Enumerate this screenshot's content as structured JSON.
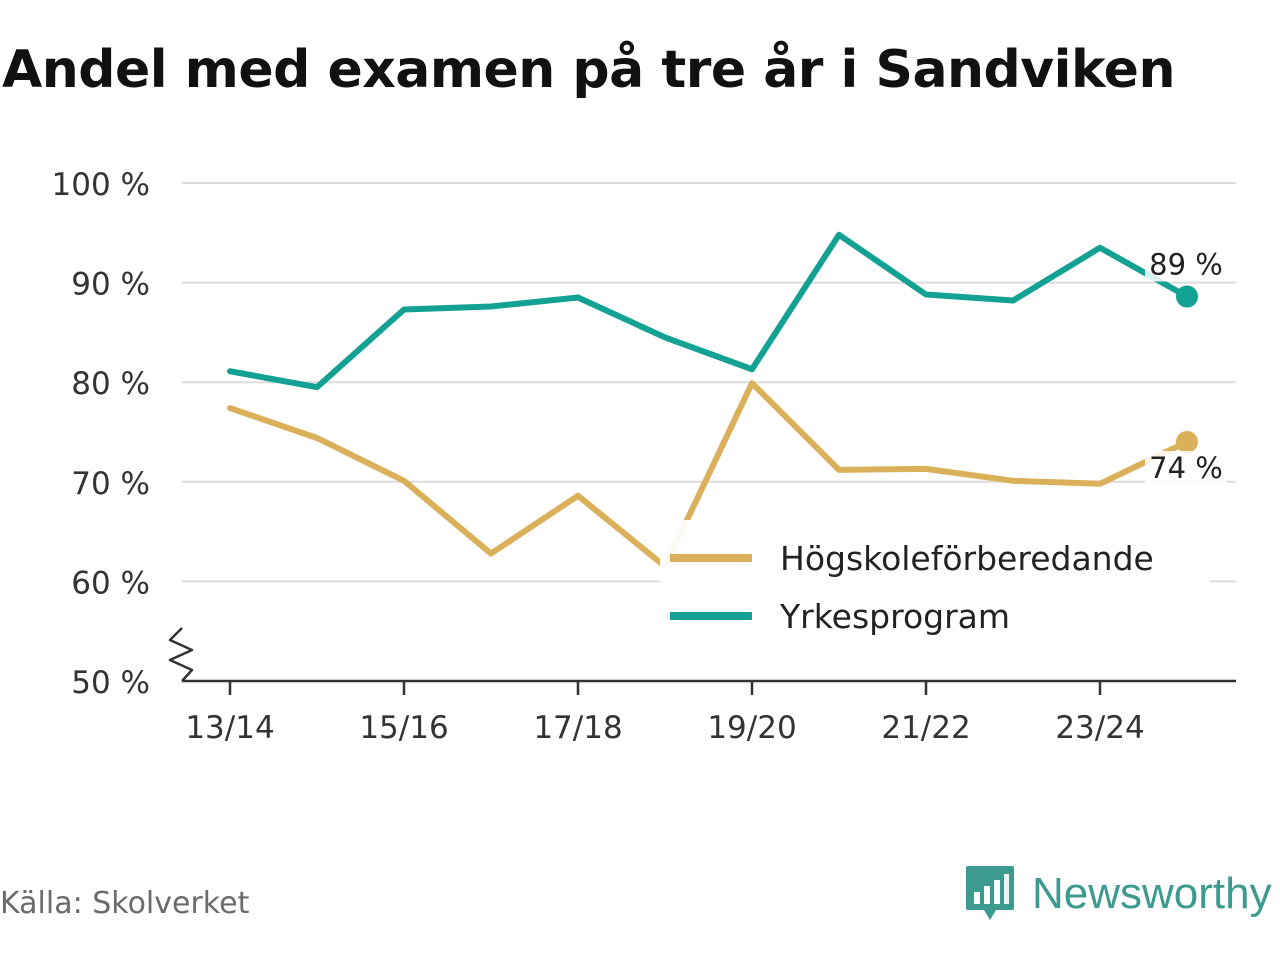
{
  "title": "Andel med examen på tre år i Sandviken",
  "source": "Källa: Skolverket",
  "brand": {
    "name": "Newsworthy",
    "icon": "bar-chart-bubble-icon",
    "color": "#3d9a8e"
  },
  "chart_data": {
    "type": "line",
    "title": "Andel med examen på tre år i Sandviken",
    "x": [
      "13/14",
      "14/15",
      "15/16",
      "16/17",
      "17/18",
      "18/19",
      "19/20",
      "20/21",
      "21/22",
      "22/23",
      "23/24",
      "24/25"
    ],
    "x_tick_labels": [
      "13/14",
      "15/16",
      "17/18",
      "19/20",
      "21/22",
      "23/24"
    ],
    "y_ticks": [
      50,
      60,
      70,
      80,
      90,
      100
    ],
    "y_tick_labels": [
      "50 %",
      "60 %",
      "70 %",
      "80 %",
      "90 %",
      "100 %"
    ],
    "ylim": [
      50,
      100
    ],
    "y_axis_break": true,
    "grid": true,
    "legend_position": "bottom-right",
    "series": [
      {
        "name": "Högskoleförberedande",
        "color": "#dbb05a",
        "values": [
          77.4,
          74.4,
          70.1,
          62.8,
          68.6,
          61.5,
          79.9,
          71.2,
          71.3,
          70.1,
          69.8,
          74.0
        ],
        "end_label": "74 %"
      },
      {
        "name": "Yrkesprogram",
        "color": "#12a193",
        "values": [
          81.1,
          79.5,
          87.3,
          87.6,
          88.5,
          84.5,
          81.3,
          94.8,
          88.8,
          88.2,
          93.5,
          88.6
        ],
        "end_label": "89 %"
      }
    ]
  }
}
